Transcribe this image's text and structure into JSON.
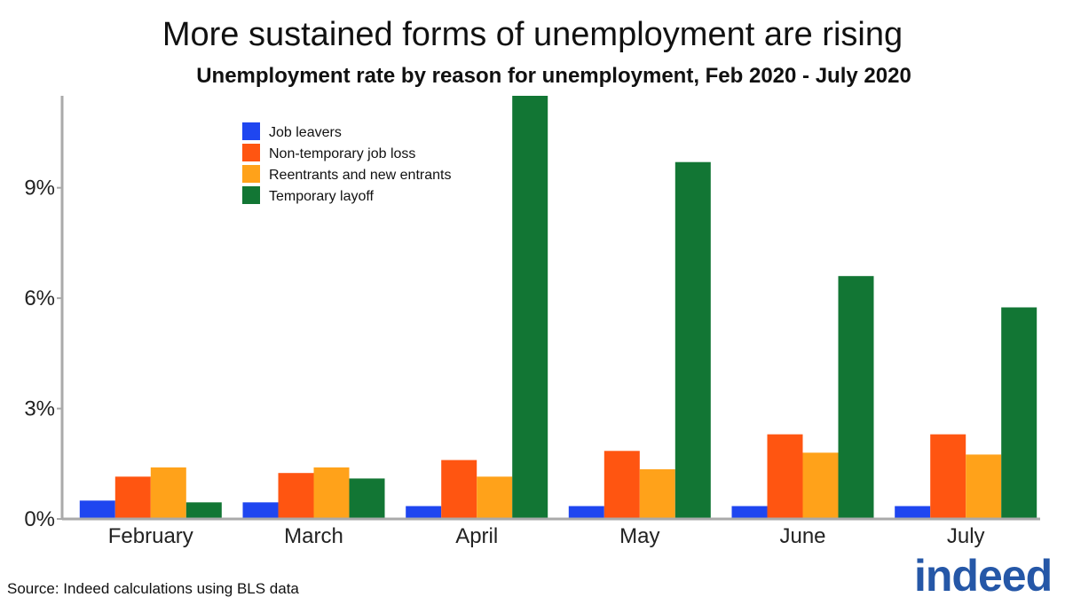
{
  "title": "More sustained forms of unemployment are rising",
  "subtitle": "Unemployment rate by reason for unemployment, Feb 2020 - July 2020",
  "source": "Source: Indeed calculations using BLS data",
  "logo_text": "indeed",
  "colors": {
    "job_leavers": "#1f46f0",
    "non_temporary": "#ff5511",
    "reentrants": "#ffa21a",
    "temporary": "#127634",
    "axis": "#aaaaaa",
    "logo": "#2557a7"
  },
  "chart_data": {
    "type": "bar",
    "title": "More sustained forms of unemployment are rising",
    "subtitle": "Unemployment rate by reason for unemployment, Feb 2020 - July 2020",
    "categories": [
      "February",
      "March",
      "April",
      "May",
      "June",
      "July"
    ],
    "series": [
      {
        "name": "Job leavers",
        "color": "#1f46f0",
        "values": [
          0.5,
          0.45,
          0.35,
          0.35,
          0.35,
          0.35
        ]
      },
      {
        "name": "Non-temporary job loss",
        "color": "#ff5511",
        "values": [
          1.15,
          1.25,
          1.6,
          1.85,
          2.3,
          2.3
        ]
      },
      {
        "name": "Reentrants and new entrants",
        "color": "#ffa21a",
        "values": [
          1.4,
          1.4,
          1.15,
          1.35,
          1.8,
          1.75
        ]
      },
      {
        "name": "Temporary layoff",
        "color": "#127634",
        "values": [
          0.45,
          1.1,
          11.5,
          9.7,
          6.6,
          5.75
        ]
      }
    ],
    "y_ticks": [
      0,
      3,
      6,
      9
    ],
    "y_tick_labels": [
      "0%",
      "3%",
      "6%",
      "9%"
    ],
    "ylim": [
      0,
      11.5
    ],
    "grid": false,
    "legend_position": "top-left"
  }
}
